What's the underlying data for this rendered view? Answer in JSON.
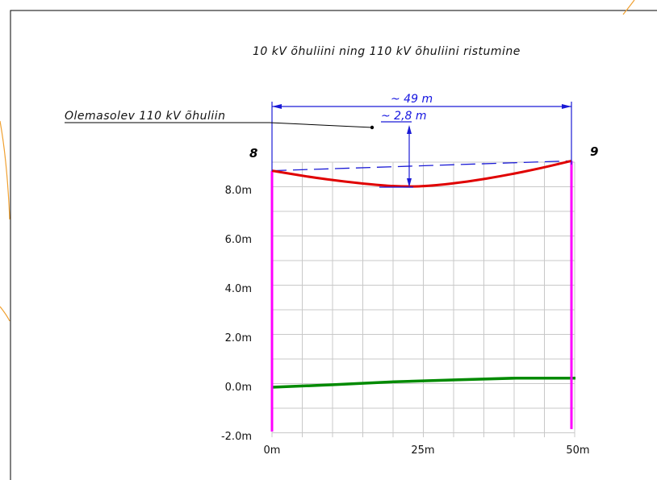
{
  "drawing": {
    "title": "10 kV õhuliini ning 110 kV õhuliini ristumine",
    "callout_label": "Olemasolev 110 kV õhuliin",
    "span_dimension": "~ 49 m",
    "clearance_dimension": "~ 2,8 m",
    "pole_left": "8",
    "pole_right": "9"
  },
  "colors": {
    "grid": "#c8c8c8",
    "poles": "#ff00ff",
    "conductor_10kv": "#e00000",
    "ground": "#008a00",
    "line_110kv": "#1a1ad6",
    "dimension": "#1a1ad6",
    "frame": "#000000",
    "sheet_border": "#f0a030"
  },
  "chart_data": {
    "type": "line",
    "title": "",
    "xlabel": "",
    "ylabel": "",
    "xlim": [
      0,
      49
    ],
    "ylim": [
      -2.0,
      9.2
    ],
    "x_ticks": [
      {
        "value": 0,
        "label": "0m"
      },
      {
        "value": 25,
        "label": "25m"
      },
      {
        "value": 50,
        "label": "50m"
      }
    ],
    "y_ticks": [
      {
        "value": 8.0,
        "label": "8.0m"
      },
      {
        "value": 6.0,
        "label": "6.0m"
      },
      {
        "value": 4.0,
        "label": "4.0m"
      },
      {
        "value": 2.0,
        "label": "2.0m"
      },
      {
        "value": 0.0,
        "label": "0.0m"
      },
      {
        "value": -2.0,
        "label": "-2.0m"
      }
    ],
    "grid": true,
    "series": [
      {
        "key": "conductor",
        "style": "solid",
        "color": "#e00000",
        "points": [
          [
            0,
            8.8
          ],
          [
            6,
            8.55
          ],
          [
            12,
            8.35
          ],
          [
            18,
            8.2
          ],
          [
            22,
            8.15
          ],
          [
            26,
            8.18
          ],
          [
            32,
            8.35
          ],
          [
            38,
            8.6
          ],
          [
            44,
            8.9
          ],
          [
            49,
            9.2
          ]
        ]
      },
      {
        "key": "line_110kv",
        "style": "dashed",
        "color": "#1a1ad6",
        "points": [
          [
            0,
            8.8
          ],
          [
            49,
            9.2
          ]
        ]
      },
      {
        "key": "ground",
        "style": "solid",
        "color": "#008a00",
        "points": [
          [
            0,
            0.0
          ],
          [
            10,
            0.1
          ],
          [
            20,
            0.22
          ],
          [
            30,
            0.3
          ],
          [
            40,
            0.37
          ],
          [
            49,
            0.37
          ]
        ]
      }
    ],
    "poles": [
      {
        "x": 0,
        "bottom": -1.8,
        "top": 8.8
      },
      {
        "x": 49,
        "bottom": -1.7,
        "top": 9.2
      }
    ]
  }
}
